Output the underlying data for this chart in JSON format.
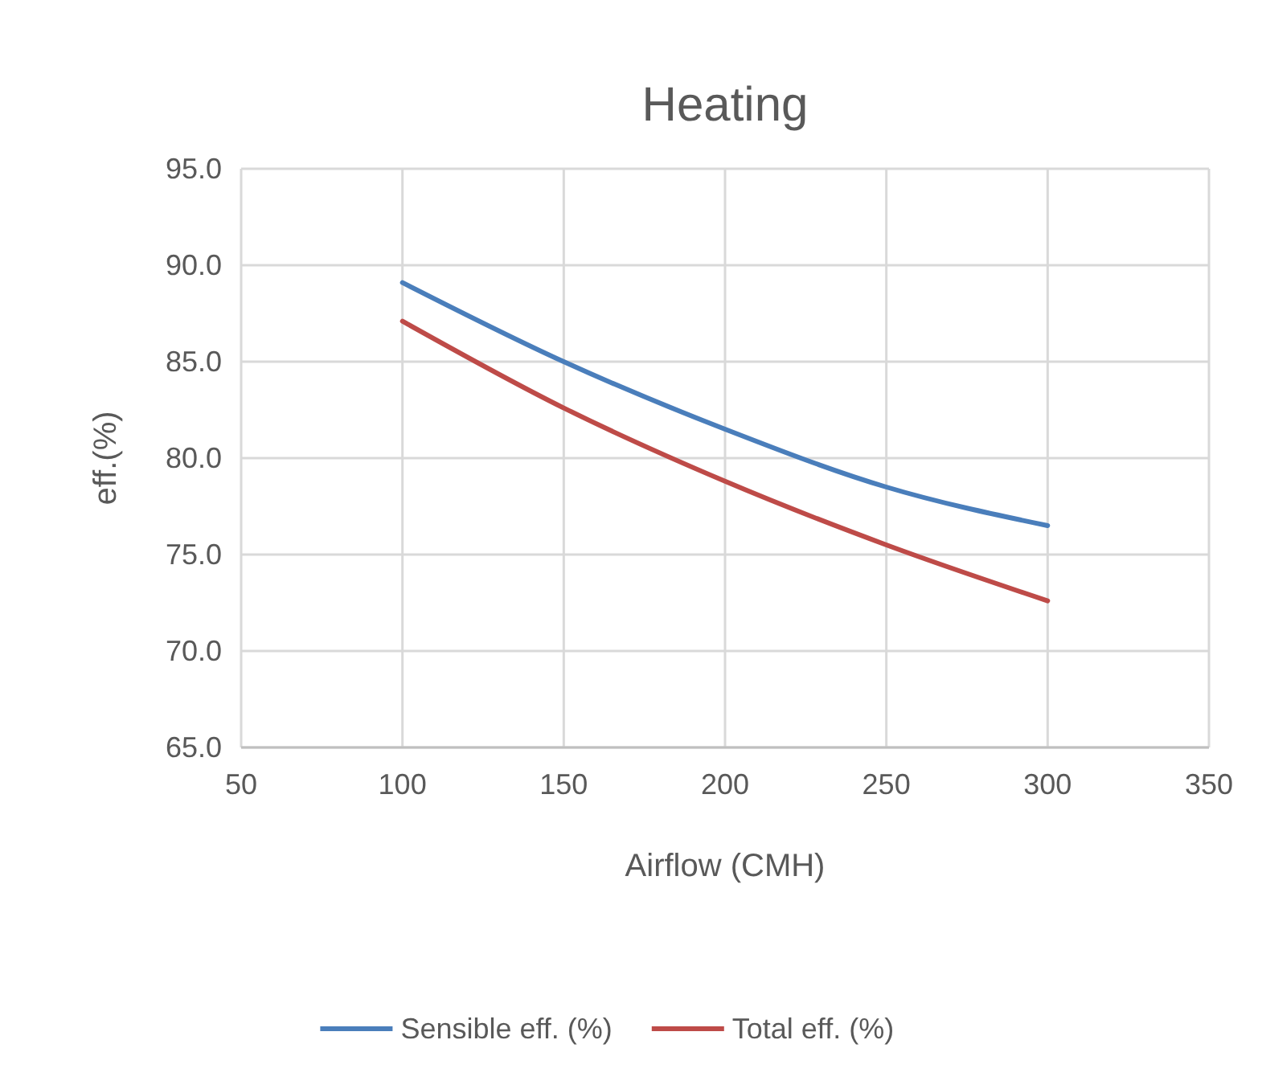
{
  "chart_data": {
    "type": "line",
    "title": "Heating",
    "xlabel": "Airflow (CMH)",
    "ylabel": "eff.(%)",
    "xlim": [
      50,
      350
    ],
    "xticks": [
      50,
      100,
      150,
      200,
      250,
      300,
      350
    ],
    "ylim": [
      65,
      95
    ],
    "yticks": [
      {
        "value": 65,
        "label": "65.0"
      },
      {
        "value": 70,
        "label": "70.0"
      },
      {
        "value": 75,
        "label": "75.0"
      },
      {
        "value": 80,
        "label": "80.0"
      },
      {
        "value": 85,
        "label": "85.0"
      },
      {
        "value": 90,
        "label": "90.0"
      },
      {
        "value": 95,
        "label": "95.0"
      }
    ],
    "grid": true,
    "legend": "bottom",
    "marker": "none",
    "line_style": "solid",
    "series": [
      {
        "name": "Sensible eff. (%)",
        "color": "#4a7ebb",
        "x": [
          100,
          150,
          200,
          250,
          300
        ],
        "values": [
          89.1,
          85.0,
          81.5,
          78.5,
          76.5
        ]
      },
      {
        "name": "Total eff. (%)",
        "color": "#be4b48",
        "x": [
          100,
          150,
          200,
          250,
          300
        ],
        "values": [
          87.1,
          82.6,
          78.8,
          75.5,
          72.6
        ]
      }
    ]
  }
}
